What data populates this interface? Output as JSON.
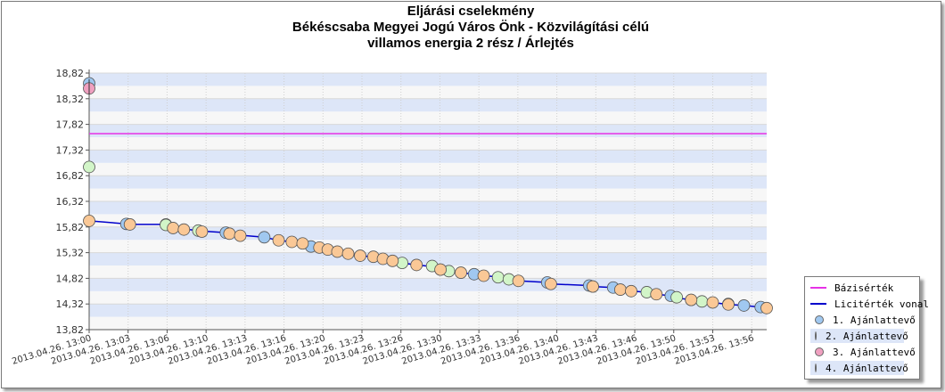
{
  "title_lines": [
    "Eljárási cselekmény",
    "Békéscsaba Megyei Jogú Város Önk - Közvilágítási célú",
    "villamos energia 2 rész / Árlejtés"
  ],
  "chart_data": {
    "type": "scatter",
    "title": "Eljárási cselekmény Békéscsaba Megyei Jogú Város Önk - Közvilágítási célú villamos energia 2 rész / Árlejtés",
    "ylim": [
      13.82,
      18.82
    ],
    "ytick_labels": [
      "18,82",
      "18,32",
      "17,82",
      "17,32",
      "16,82",
      "16,32",
      "15,82",
      "15,32",
      "14,82",
      "14,32",
      "13,82"
    ],
    "ytick_values": [
      18.82,
      18.32,
      17.82,
      17.32,
      16.82,
      16.32,
      15.82,
      15.32,
      14.82,
      14.32,
      13.82
    ],
    "x_range_minutes": [
      0,
      56.5
    ],
    "xtick_labels": [
      "2013.04.26. 13:00",
      "2013.04.26. 13:03",
      "2013.04.26. 13:06",
      "2013.04.26. 13:10",
      "2013.04.26. 13:13",
      "2013.04.26. 13:16",
      "2013.04.26. 13:20",
      "2013.04.26. 13:23",
      "2013.04.26. 13:26",
      "2013.04.26. 13:30",
      "2013.04.26. 13:33",
      "2013.04.26. 13:36",
      "2013.04.26. 13:40",
      "2013.04.26. 13:43",
      "2013.04.26. 13:46",
      "2013.04.26. 13:50",
      "2013.04.26. 13:53",
      "2013.04.26. 13:56"
    ],
    "xtick_minutes": [
      0,
      3.25,
      6.5,
      9.75,
      13,
      16.25,
      19.5,
      22.75,
      26,
      29.25,
      32.5,
      35.75,
      39,
      42.25,
      45.5,
      48.75,
      52,
      55.25
    ],
    "grid": true,
    "legend_position": "bottom-right",
    "base_value": 17.64,
    "series": [
      {
        "name": "Bázisérték",
        "kind": "line",
        "color": "#e632e6"
      },
      {
        "name": "Licitérték vonal",
        "kind": "line",
        "color": "#0000cc",
        "points": [
          [
            0,
            15.94
          ],
          [
            3.1,
            15.88
          ],
          [
            3.4,
            15.87
          ],
          [
            6.4,
            15.87
          ],
          [
            7.0,
            15.8
          ],
          [
            7.9,
            15.78
          ],
          [
            9.1,
            15.75
          ],
          [
            9.4,
            15.74
          ],
          [
            11.4,
            15.71
          ],
          [
            11.7,
            15.69
          ],
          [
            12.6,
            15.66
          ],
          [
            14.6,
            15.62
          ],
          [
            15.8,
            15.56
          ],
          [
            16.9,
            15.53
          ],
          [
            17.8,
            15.5
          ],
          [
            18.5,
            15.44
          ],
          [
            19.2,
            15.42
          ],
          [
            19.9,
            15.38
          ],
          [
            20.7,
            15.34
          ],
          [
            21.6,
            15.3
          ],
          [
            22.6,
            15.26
          ],
          [
            23.7,
            15.24
          ],
          [
            24.5,
            15.2
          ],
          [
            25.3,
            15.16
          ],
          [
            26.1,
            15.12
          ],
          [
            27.3,
            15.08
          ],
          [
            28.6,
            15.05
          ],
          [
            29.3,
            14.99
          ],
          [
            30.0,
            14.95
          ],
          [
            31.0,
            14.93
          ],
          [
            32.1,
            14.9
          ],
          [
            32.9,
            14.87
          ],
          [
            34.1,
            14.85
          ],
          [
            35.0,
            14.8
          ],
          [
            35.8,
            14.77
          ],
          [
            38.2,
            14.74
          ],
          [
            38.5,
            14.71
          ],
          [
            41.7,
            14.68
          ],
          [
            42.0,
            14.66
          ],
          [
            43.7,
            14.64
          ],
          [
            44.3,
            14.6
          ],
          [
            45.2,
            14.57
          ],
          [
            46.5,
            14.55
          ],
          [
            47.3,
            14.51
          ],
          [
            48.5,
            14.48
          ],
          [
            49.0,
            14.44
          ],
          [
            50.2,
            14.4
          ],
          [
            51.1,
            14.37
          ],
          [
            52.0,
            14.35
          ],
          [
            53.3,
            14.31
          ],
          [
            54.6,
            14.29
          ],
          [
            56.0,
            14.26
          ],
          [
            56.5,
            14.24
          ]
        ]
      },
      {
        "name": "1. Ajánlattevő",
        "kind": "points",
        "color": "#a0c8f0",
        "points": [
          [
            0,
            18.62
          ],
          [
            3.1,
            15.88
          ],
          [
            6.4,
            15.87
          ],
          [
            11.4,
            15.71
          ],
          [
            14.6,
            15.62
          ],
          [
            18.5,
            15.44
          ],
          [
            29.3,
            14.99
          ],
          [
            32.1,
            14.9
          ],
          [
            38.2,
            14.74
          ],
          [
            41.7,
            14.68
          ],
          [
            43.7,
            14.64
          ],
          [
            48.5,
            14.48
          ],
          [
            50.2,
            14.4
          ],
          [
            54.6,
            14.29
          ],
          [
            56.0,
            14.26
          ]
        ]
      },
      {
        "name": "2. Ajánlattevő",
        "kind": "points",
        "color": "#d2f5c8",
        "points": [
          [
            0,
            16.99
          ],
          [
            6.4,
            15.86
          ],
          [
            9.1,
            15.75
          ],
          [
            26.1,
            15.12
          ],
          [
            28.6,
            15.06
          ],
          [
            30.0,
            14.96
          ],
          [
            34.1,
            14.84
          ],
          [
            35.0,
            14.8
          ],
          [
            42.0,
            14.66
          ],
          [
            46.5,
            14.55
          ],
          [
            49.0,
            14.45
          ],
          [
            51.1,
            14.37
          ],
          [
            53.3,
            14.32
          ]
        ]
      },
      {
        "name": "3. Ajánlattevő",
        "kind": "points",
        "color": "#f0a0c0",
        "points": [
          [
            0,
            18.52
          ]
        ]
      },
      {
        "name": "4. Ajánlattevő",
        "kind": "points",
        "color": "#fac896",
        "points": [
          [
            0,
            15.94
          ],
          [
            3.4,
            15.87
          ],
          [
            7.0,
            15.8
          ],
          [
            7.9,
            15.77
          ],
          [
            9.4,
            15.73
          ],
          [
            11.7,
            15.69
          ],
          [
            12.6,
            15.65
          ],
          [
            15.8,
            15.56
          ],
          [
            16.9,
            15.53
          ],
          [
            17.8,
            15.5
          ],
          [
            19.2,
            15.42
          ],
          [
            19.9,
            15.38
          ],
          [
            20.7,
            15.34
          ],
          [
            21.6,
            15.3
          ],
          [
            22.6,
            15.26
          ],
          [
            23.7,
            15.24
          ],
          [
            24.5,
            15.2
          ],
          [
            25.3,
            15.16
          ],
          [
            27.3,
            15.08
          ],
          [
            29.3,
            14.99
          ],
          [
            31.0,
            14.93
          ],
          [
            32.9,
            14.87
          ],
          [
            35.8,
            14.77
          ],
          [
            38.5,
            14.71
          ],
          [
            42.0,
            14.66
          ],
          [
            44.3,
            14.6
          ],
          [
            45.2,
            14.57
          ],
          [
            47.3,
            14.51
          ],
          [
            50.2,
            14.4
          ],
          [
            52.0,
            14.35
          ],
          [
            53.3,
            14.31
          ],
          [
            56.5,
            14.24
          ]
        ]
      }
    ]
  },
  "legend": [
    {
      "label": "Bázisérték",
      "kind": "line",
      "color": "#e632e6"
    },
    {
      "label": "Licitérték vonal",
      "kind": "line",
      "color": "#0000cc"
    },
    {
      "label": "1. Ajánlattevő",
      "kind": "dot",
      "color": "#a0c8f0"
    },
    {
      "label": "2. Ajánlattevő",
      "kind": "dot",
      "color": "#d2f5c8"
    },
    {
      "label": "3. Ajánlattevő",
      "kind": "dot",
      "color": "#f0a0c0"
    },
    {
      "label": "4. Ajánlattevő",
      "kind": "dot",
      "color": "#fac896"
    }
  ]
}
